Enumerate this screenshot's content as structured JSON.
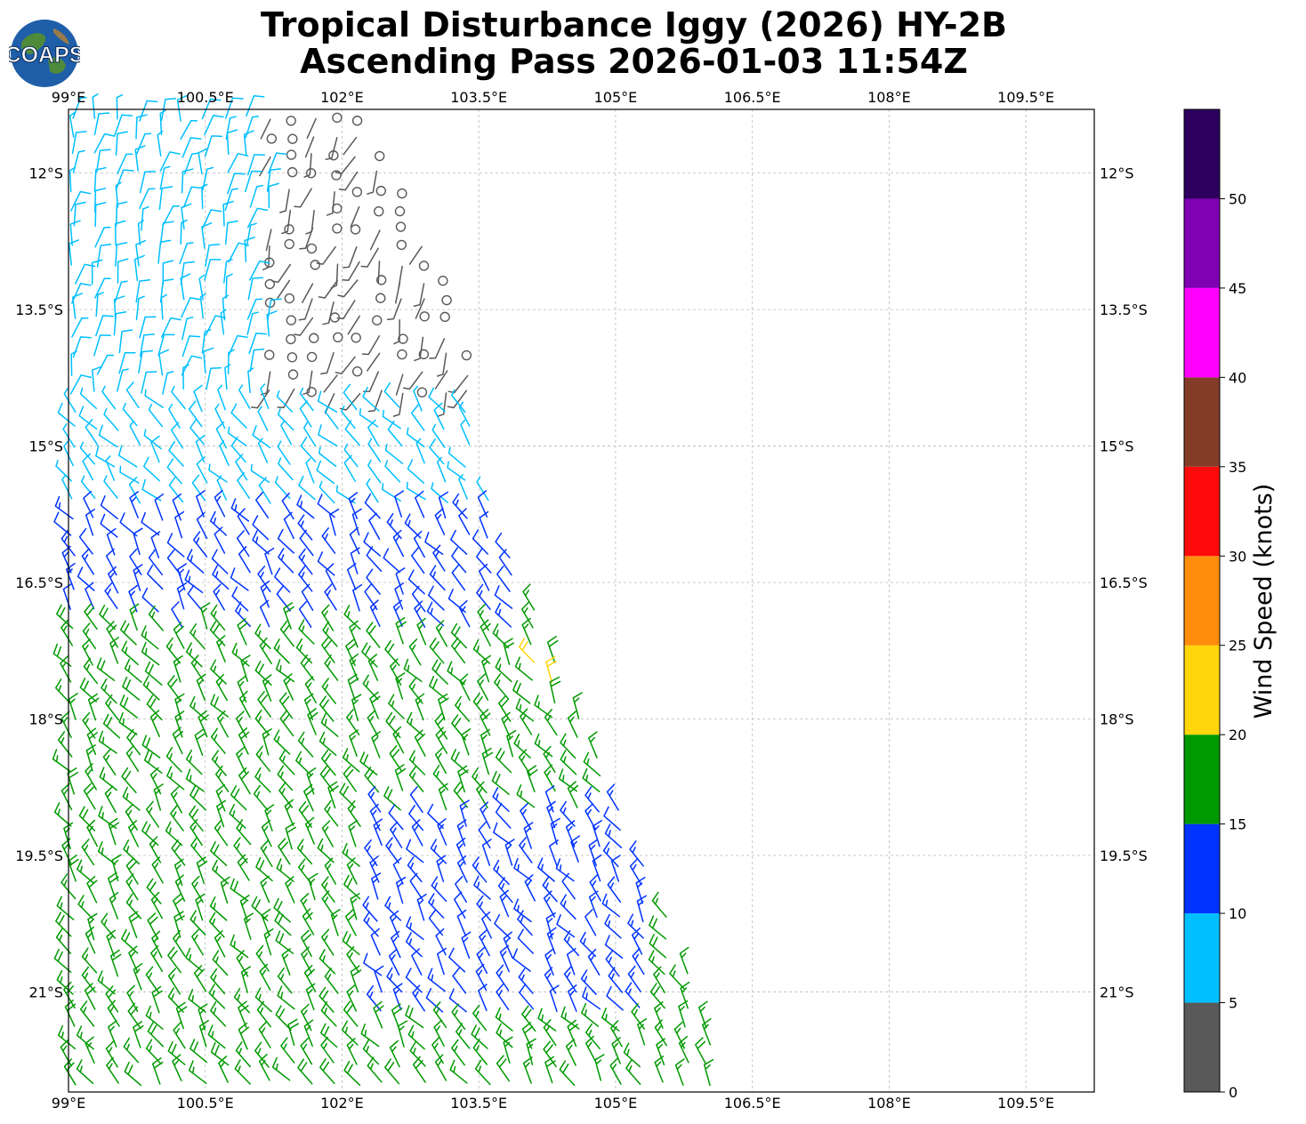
{
  "title_line1": "Tropical Disturbance Iggy (2026) HY-2B",
  "title_line2": "Ascending Pass 2026-01-03 11:54Z",
  "logo_text": "COAPS",
  "map": {
    "lon_ticks": [
      "99°E",
      "100.5°E",
      "102°E",
      "103.5°E",
      "105°E",
      "106.5°E",
      "108°E",
      "109.5°E"
    ],
    "lon_values": [
      99,
      100.5,
      102,
      103.5,
      105,
      106.5,
      108,
      109.5
    ],
    "lat_ticks": [
      "12°S",
      "13.5°S",
      "15°S",
      "16.5°S",
      "18°S",
      "19.5°S",
      "21°S"
    ],
    "lat_values": [
      -12,
      -13.5,
      -15,
      -16.5,
      -18,
      -19.5,
      -21
    ],
    "lon_range": [
      99,
      110.25
    ],
    "lat_range": [
      -11.3,
      -22.1
    ],
    "grid": true
  },
  "colorbar": {
    "label": "Wind Speed (knots)",
    "ticks": [
      "0",
      "5",
      "10",
      "15",
      "20",
      "25",
      "30",
      "35",
      "40",
      "45",
      "50"
    ],
    "bins": [
      {
        "min": 0,
        "max": 5,
        "color": "#595959"
      },
      {
        "min": 5,
        "max": 10,
        "color": "#00bfff"
      },
      {
        "min": 10,
        "max": 15,
        "color": "#0033ff"
      },
      {
        "min": 15,
        "max": 20,
        "color": "#009900"
      },
      {
        "min": 20,
        "max": 25,
        "color": "#ffd60a"
      },
      {
        "min": 25,
        "max": 30,
        "color": "#ff8c0a"
      },
      {
        "min": 30,
        "max": 35,
        "color": "#ff0a0a"
      },
      {
        "min": 35,
        "max": 40,
        "color": "#823c28"
      },
      {
        "min": 40,
        "max": 45,
        "color": "#ff00ff"
      },
      {
        "min": 45,
        "max": 50,
        "color": "#8000b3"
      },
      {
        "min": 50,
        "max": 55,
        "color": "#2d0060"
      }
    ]
  },
  "wind_field": {
    "swath_edge": [
      [
        99,
        -11.3
      ],
      [
        102.2,
        -11.3
      ],
      [
        102.7,
        -12.3
      ],
      [
        103.3,
        -13.5
      ],
      [
        103.5,
        -14.5
      ],
      [
        103.6,
        -15.3
      ],
      [
        104.0,
        -16.5
      ],
      [
        104.7,
        -18.2
      ],
      [
        105.7,
        -20.5
      ],
      [
        106.3,
        -22.1
      ],
      [
        99,
        -22.1
      ]
    ],
    "regions": [
      {
        "name": "calm-core",
        "lon": [
          101.0,
          103.4
        ],
        "lat": [
          -11.3,
          -15.9
        ],
        "speed_kt": 3,
        "dir_deg": 250
      },
      {
        "name": "light-north",
        "lon": [
          99,
          101.2
        ],
        "lat": [
          -11.3,
          -14.5
        ],
        "speed_kt": 8,
        "dir_deg": 80
      },
      {
        "name": "light-mid",
        "lon": [
          99,
          103.9
        ],
        "lat": [
          -14.5,
          -17.5
        ],
        "speed_kt": 7,
        "dir_deg": 130
      },
      {
        "name": "moderate-band",
        "lon": [
          99,
          104.0
        ],
        "lat": [
          -15.7,
          -18.3
        ],
        "speed_kt": 12,
        "dir_deg": 125
      },
      {
        "name": "fresh-south",
        "lon": [
          99,
          106.3
        ],
        "lat": [
          -17.0,
          -22.1
        ],
        "speed_kt": 17,
        "dir_deg": 125
      },
      {
        "name": "moderate-south",
        "lon": [
          102.3,
          105.5
        ],
        "lat": [
          -19.0,
          -21.3
        ],
        "speed_kt": 13,
        "dir_deg": 125
      },
      {
        "name": "strong-edge",
        "lon": [
          104.1,
          104.5
        ],
        "lat": [
          -17.3,
          -17.9
        ],
        "speed_kt": 21,
        "dir_deg": 120
      }
    ]
  }
}
